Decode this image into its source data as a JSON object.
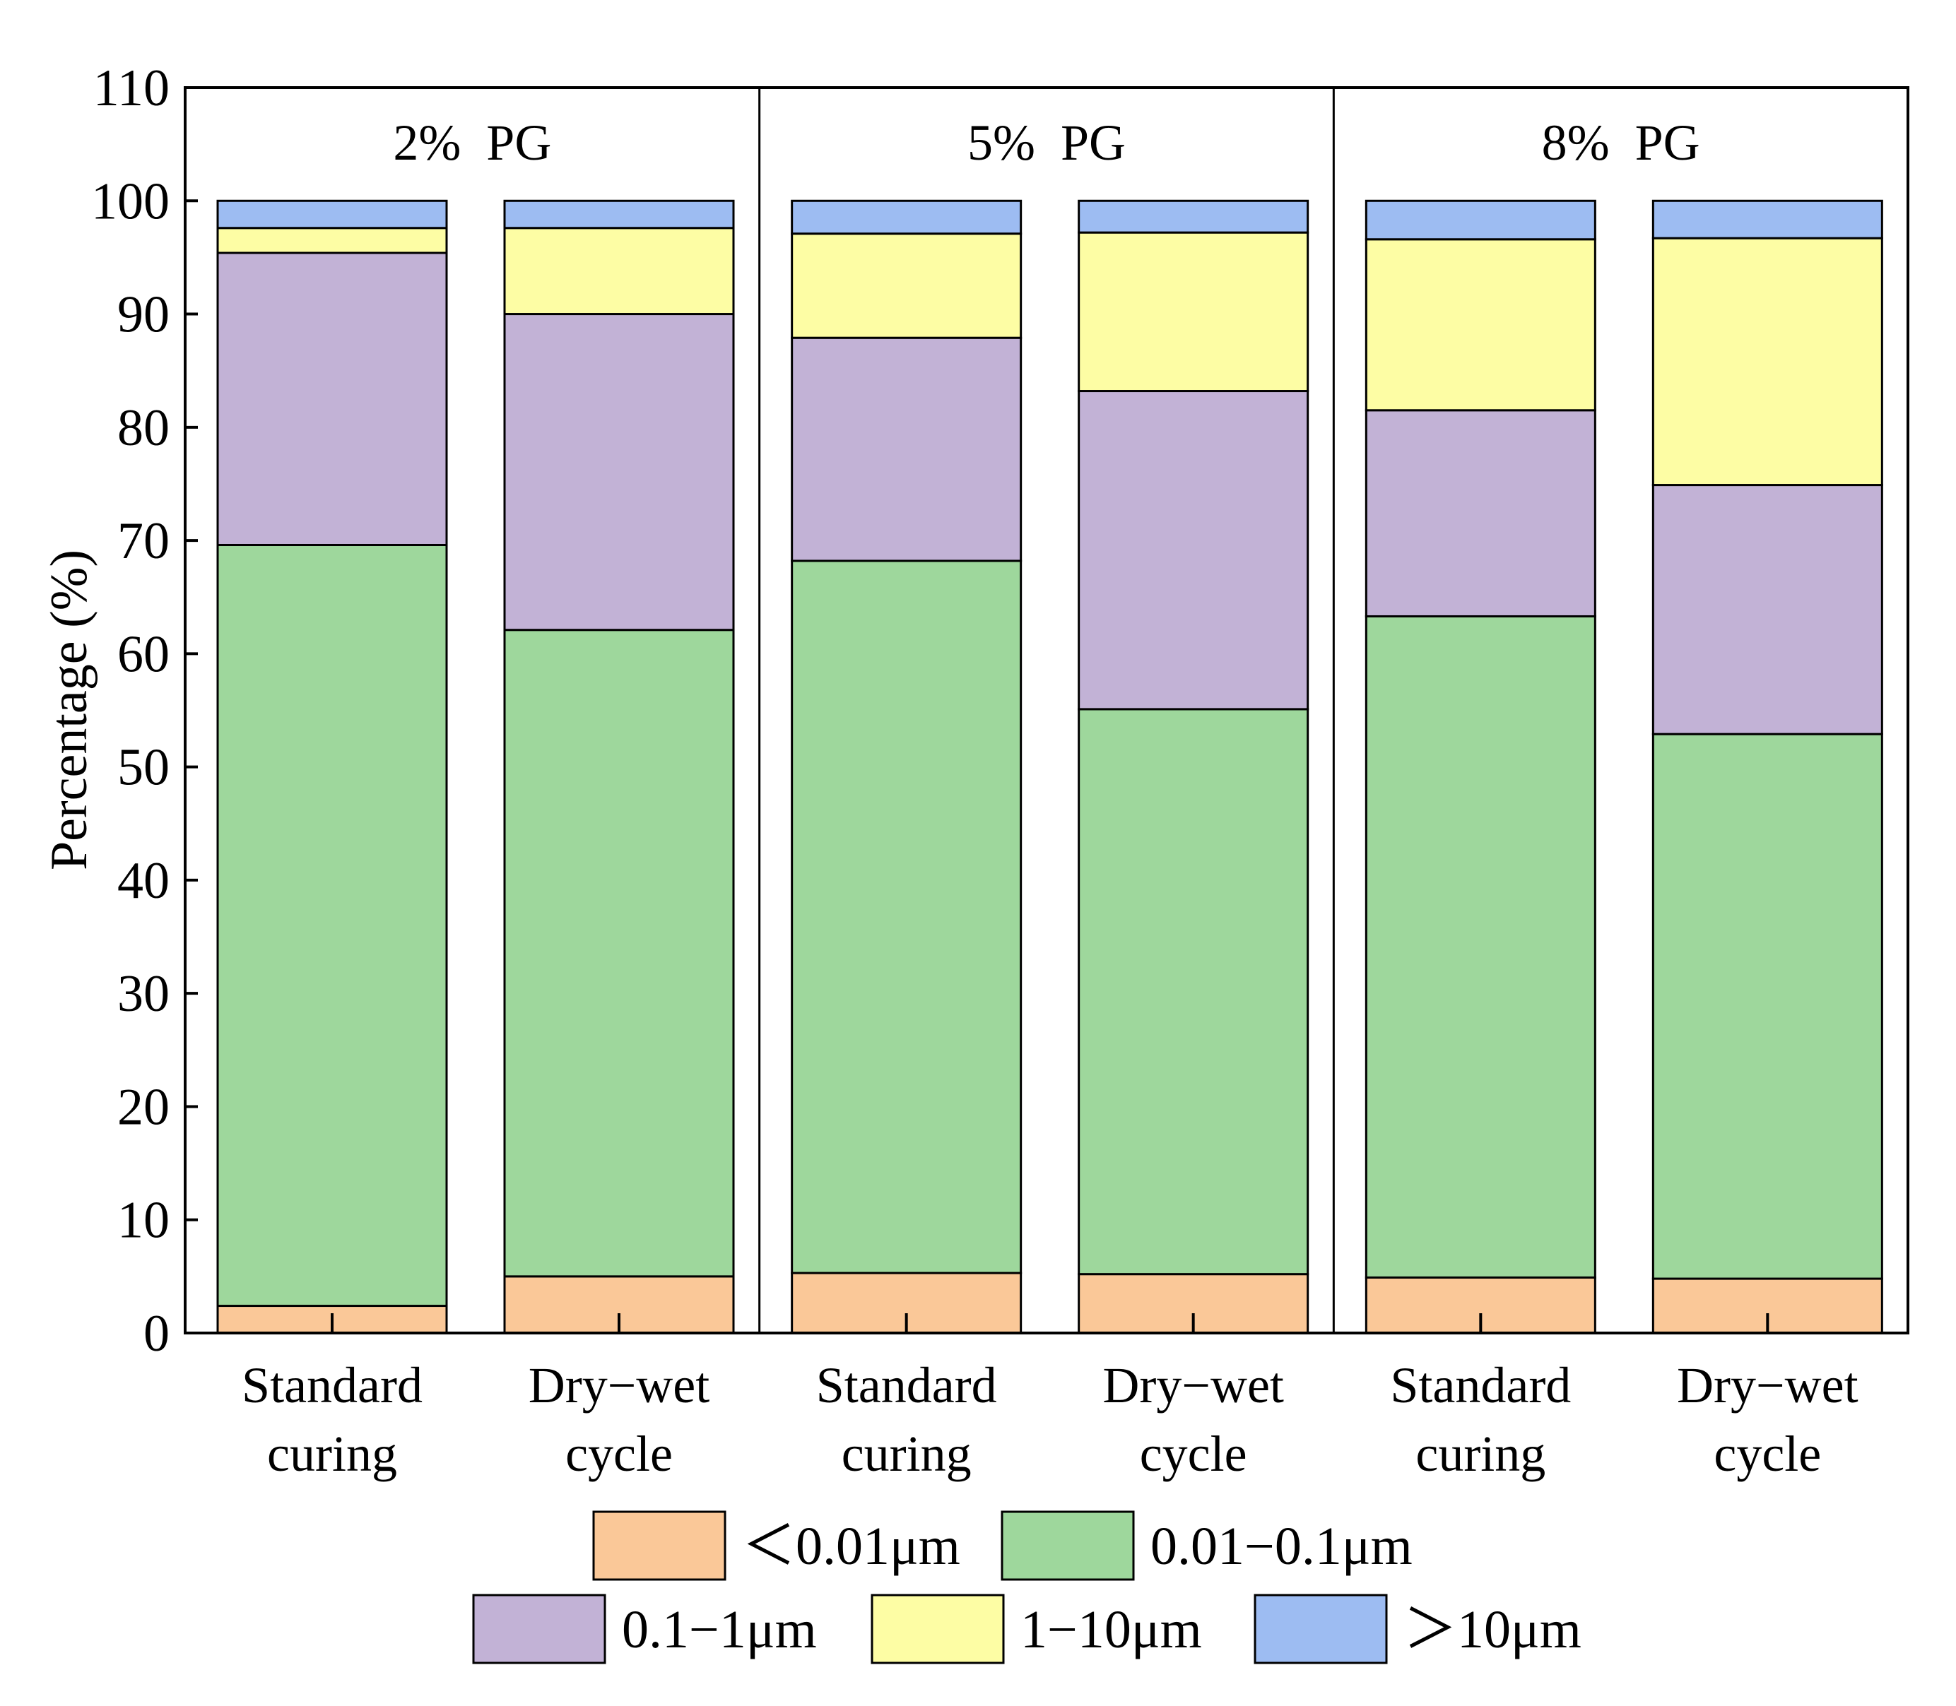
{
  "chart_data": {
    "type": "bar",
    "stacked": true,
    "title": "",
    "xlabel": "",
    "ylabel": "Percentage (%)",
    "ylim": [
      0,
      110
    ],
    "yticks": [
      0,
      10,
      20,
      30,
      40,
      50,
      60,
      70,
      80,
      90,
      100,
      110
    ],
    "groups": [
      "2%  PG",
      "5%  PG",
      "8%  PG"
    ],
    "categories": [
      [
        "Standard",
        "curing"
      ],
      [
        "Dry−wet",
        "cycle"
      ],
      [
        "Standard",
        "curing"
      ],
      [
        "Dry−wet",
        "cycle"
      ],
      [
        "Standard",
        "curing"
      ],
      [
        "Dry−wet",
        "cycle"
      ]
    ],
    "series": [
      {
        "name": "＜0.01μm",
        "color": "#FAC898",
        "values": [
          2.4,
          5.0,
          5.3,
          5.2,
          4.9,
          4.8
        ]
      },
      {
        "name": "0.01−0.1μm",
        "color": "#9ED79C",
        "values": [
          67.2,
          57.1,
          62.9,
          49.9,
          58.4,
          48.1
        ]
      },
      {
        "name": "0.1−1μm",
        "color": "#C2B2D6",
        "values": [
          25.8,
          27.9,
          19.7,
          28.1,
          18.2,
          22.0
        ]
      },
      {
        "name": "1−10μm",
        "color": "#FDFDA4",
        "values": [
          2.2,
          7.6,
          9.2,
          14.0,
          15.1,
          21.8
        ]
      },
      {
        "name": "＞10μm",
        "color": "#9DBCF2",
        "values": [
          2.4,
          2.4,
          2.9,
          2.8,
          3.4,
          3.3
        ]
      }
    ],
    "legend_position": "bottom"
  }
}
